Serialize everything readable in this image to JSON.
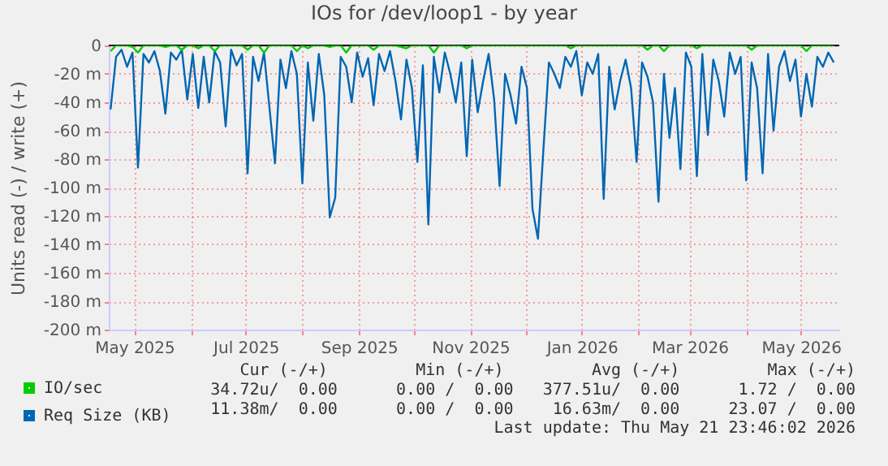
{
  "chart_data": {
    "type": "line",
    "title": "IOs for /dev/loop1 - by year",
    "ylabel": "Units read (-) / write (+)",
    "x": [
      "2025-04-18",
      "2025-04-21",
      "2025-04-24",
      "2025-04-27",
      "2025-04-30",
      "2025-05-03",
      "2025-05-06",
      "2025-05-09",
      "2025-05-12",
      "2025-05-15",
      "2025-05-18",
      "2025-05-21",
      "2025-05-24",
      "2025-05-27",
      "2025-05-30",
      "2025-06-02",
      "2025-06-05",
      "2025-06-08",
      "2025-06-11",
      "2025-06-14",
      "2025-06-17",
      "2025-06-20",
      "2025-06-23",
      "2025-06-26",
      "2025-06-29",
      "2025-07-02",
      "2025-07-05",
      "2025-07-08",
      "2025-07-11",
      "2025-07-14",
      "2025-07-17",
      "2025-07-20",
      "2025-07-23",
      "2025-07-26",
      "2025-07-29",
      "2025-08-01",
      "2025-08-04",
      "2025-08-07",
      "2025-08-10",
      "2025-08-13",
      "2025-08-16",
      "2025-08-19",
      "2025-08-22",
      "2025-08-25",
      "2025-08-28",
      "2025-08-31",
      "2025-09-03",
      "2025-09-06",
      "2025-09-09",
      "2025-09-12",
      "2025-09-15",
      "2025-09-18",
      "2025-09-21",
      "2025-09-24",
      "2025-09-27",
      "2025-09-30",
      "2025-10-03",
      "2025-10-06",
      "2025-10-09",
      "2025-10-12",
      "2025-10-15",
      "2025-10-18",
      "2025-10-21",
      "2025-10-24",
      "2025-10-27",
      "2025-10-30",
      "2025-11-02",
      "2025-11-05",
      "2025-11-08",
      "2025-11-11",
      "2025-11-14",
      "2025-11-17",
      "2025-11-20",
      "2025-11-23",
      "2025-11-26",
      "2025-11-29",
      "2025-12-02",
      "2025-12-05",
      "2025-12-08",
      "2025-12-11",
      "2025-12-14",
      "2025-12-17",
      "2025-12-20",
      "2025-12-23",
      "2025-12-26",
      "2025-12-29",
      "2026-01-01",
      "2026-01-04",
      "2026-01-07",
      "2026-01-10",
      "2026-01-13",
      "2026-01-16",
      "2026-01-19",
      "2026-01-22",
      "2026-01-25",
      "2026-01-28",
      "2026-01-31",
      "2026-02-03",
      "2026-02-06",
      "2026-02-09",
      "2026-02-12",
      "2026-02-15",
      "2026-02-18",
      "2026-02-21",
      "2026-02-24",
      "2026-02-27",
      "2026-03-02",
      "2026-03-05",
      "2026-03-08",
      "2026-03-11",
      "2026-03-14",
      "2026-03-17",
      "2026-03-20",
      "2026-03-23",
      "2026-03-26",
      "2026-03-29",
      "2026-04-01",
      "2026-04-04",
      "2026-04-07",
      "2026-04-10",
      "2026-04-13",
      "2026-04-16",
      "2026-04-19",
      "2026-04-22",
      "2026-04-25",
      "2026-04-28",
      "2026-05-01",
      "2026-05-04",
      "2026-05-07",
      "2026-05-10",
      "2026-05-13",
      "2026-05-16",
      "2026-05-19"
    ],
    "series": [
      {
        "name": "Req Size (KB)",
        "color": "#0066b3",
        "values": [
          -45,
          -8,
          -3,
          -15,
          -5,
          -86,
          -6,
          -12,
          -4,
          -18,
          -48,
          -5,
          -10,
          -3,
          -38,
          -6,
          -44,
          -8,
          -40,
          -4,
          -12,
          -57,
          -3,
          -14,
          -6,
          -90,
          -8,
          -25,
          -5,
          -44,
          -83,
          -10,
          -30,
          -4,
          -20,
          -97,
          -12,
          -53,
          -6,
          -35,
          -121,
          -107,
          -8,
          -15,
          -40,
          -5,
          -22,
          -9,
          -42,
          -6,
          -18,
          -4,
          -25,
          -52,
          -10,
          -30,
          -82,
          -14,
          -126,
          -8,
          -33,
          -5,
          -20,
          -40,
          -12,
          -78,
          -10,
          -47,
          -25,
          -6,
          -38,
          -99,
          -20,
          -35,
          -55,
          -15,
          -30,
          -115,
          -136,
          -73,
          -12,
          -20,
          -30,
          -8,
          -15,
          -4,
          -35,
          -12,
          -20,
          -6,
          -108,
          -15,
          -45,
          -25,
          -10,
          -30,
          -82,
          -12,
          -22,
          -40,
          -110,
          -20,
          -65,
          -30,
          -87,
          -5,
          -15,
          -92,
          -6,
          -63,
          -10,
          -25,
          -50,
          -5,
          -20,
          -8,
          -95,
          -12,
          -30,
          -90,
          -6,
          -60,
          -15,
          -4,
          -25,
          -10,
          -50,
          -20,
          -43,
          -8,
          -15,
          -5,
          -12
        ]
      },
      {
        "name": "IO/sec",
        "color": "#00cc00",
        "values": [
          -4,
          0,
          0,
          0,
          -1,
          -5,
          0,
          0,
          0,
          0,
          -1,
          0,
          0,
          -3,
          0,
          0,
          -2,
          0,
          0,
          -4,
          0,
          0,
          0,
          0,
          0,
          -3,
          0,
          0,
          -5,
          0,
          0,
          0,
          0,
          0,
          -4,
          0,
          -2,
          0,
          0,
          0,
          -1,
          0,
          0,
          -5,
          0,
          0,
          0,
          0,
          -3,
          0,
          0,
          0,
          0,
          -1,
          -2,
          0,
          0,
          0,
          0,
          -5,
          0,
          0,
          0,
          0,
          0,
          -2,
          0,
          0,
          0,
          0,
          0,
          0,
          0,
          0,
          0,
          0,
          0,
          0,
          0,
          0,
          0,
          0,
          0,
          0,
          -2,
          0,
          0,
          0,
          0,
          0,
          0,
          0,
          0,
          0,
          0,
          0,
          0,
          0,
          -3,
          0,
          0,
          -4,
          0,
          0,
          0,
          0,
          0,
          -2,
          0,
          0,
          0,
          0,
          0,
          0,
          0,
          0,
          0,
          -3,
          0,
          0,
          0,
          0,
          0,
          0,
          0,
          0,
          0,
          -4,
          0,
          0,
          0,
          0,
          0
        ]
      }
    ],
    "xlim": [
      "2025-04-17",
      "2026-05-22"
    ],
    "xticks": [
      {
        "value": "2025-05-01",
        "label": "May 2025"
      },
      {
        "value": "2025-06-01",
        "label": null
      },
      {
        "value": "2025-07-01",
        "label": "Jul 2025"
      },
      {
        "value": "2025-08-01",
        "label": null
      },
      {
        "value": "2025-09-01",
        "label": "Sep 2025"
      },
      {
        "value": "2025-10-01",
        "label": null
      },
      {
        "value": "2025-11-01",
        "label": "Nov 2025"
      },
      {
        "value": "2025-12-01",
        "label": null
      },
      {
        "value": "2026-01-01",
        "label": "Jan 2026"
      },
      {
        "value": "2026-02-01",
        "label": null
      },
      {
        "value": "2026-03-01",
        "label": "Mar 2026"
      },
      {
        "value": "2026-04-01",
        "label": null
      },
      {
        "value": "2026-05-01",
        "label": "May 2026"
      }
    ],
    "ylim": [
      -200,
      0
    ],
    "yticks": [
      0,
      {
        "value": -20,
        "label": "-20 m"
      },
      {
        "value": -40,
        "label": "-40 m"
      },
      {
        "value": -60,
        "label": "-60 m"
      },
      {
        "value": -80,
        "label": "-80 m"
      },
      {
        "value": -100,
        "label": "-100 m"
      },
      {
        "value": -120,
        "label": "-120 m"
      },
      {
        "value": -140,
        "label": "-140 m"
      },
      {
        "value": -160,
        "label": "-160 m"
      },
      {
        "value": -180,
        "label": "-180 m"
      },
      {
        "value": -200,
        "label": "-200 m"
      }
    ],
    "ref_lines": [
      {
        "axis": "y",
        "value": 0,
        "label": null,
        "color": "#000000"
      }
    ],
    "grid": true,
    "legend": "bottom",
    "line_style": "solid",
    "annotations": [
      "Cur (-/+)         Min (-/+)         Avg (-/+)         Max (-/+)",
      "34.72u/  0.00      0.00 /  0.00   377.51u/  0.00      1.72 /  0.00",
      "11.38m/  0.00      0.00 /  0.00    16.63m/  0.00     23.07 /  0.00",
      "Last update: Thu May 21 23:46:02 2026"
    ]
  }
}
